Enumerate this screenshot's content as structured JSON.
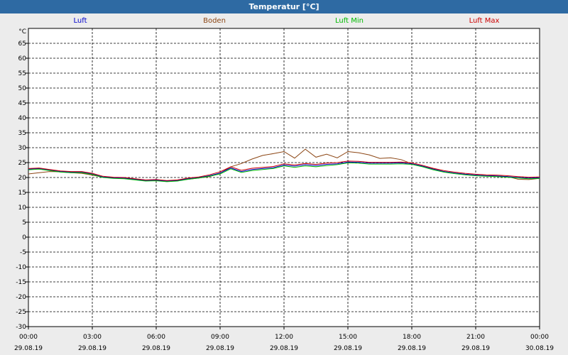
{
  "window_title": "Temperatur [°C]",
  "chart_data": {
    "type": "line",
    "title": "Temperatur [°C]",
    "ylabel": "°C",
    "ylim": [
      -30,
      70
    ],
    "yticks": [
      -30,
      -25,
      -20,
      -15,
      -10,
      -5,
      0,
      5,
      10,
      15,
      20,
      25,
      30,
      35,
      40,
      45,
      50,
      55,
      60,
      65
    ],
    "xlim": [
      "29.08.19 00:00",
      "30.08.19 00:00"
    ],
    "xticks": [
      {
        "time": "00:00",
        "date": "29.08.19"
      },
      {
        "time": "03:00",
        "date": "29.08.19"
      },
      {
        "time": "06:00",
        "date": "29.08.19"
      },
      {
        "time": "09:00",
        "date": "29.08.19"
      },
      {
        "time": "12:00",
        "date": "29.08.19"
      },
      {
        "time": "15:00",
        "date": "29.08.19"
      },
      {
        "time": "18:00",
        "date": "29.08.19"
      },
      {
        "time": "21:00",
        "date": "29.08.19"
      },
      {
        "time": "00:00",
        "date": "30.08.19"
      }
    ],
    "grid": true,
    "legend_position": "top",
    "x_hours": [
      0,
      0.5,
      1,
      1.5,
      2,
      2.5,
      3,
      3.5,
      4,
      4.5,
      5,
      5.5,
      6,
      6.5,
      7,
      7.5,
      8,
      8.5,
      9,
      9.5,
      10,
      10.5,
      11,
      11.5,
      12,
      12.5,
      13,
      13.5,
      14,
      14.5,
      15,
      15.5,
      16,
      16.5,
      17,
      17.5,
      18,
      18.5,
      19,
      19.5,
      20,
      20.5,
      21,
      21.5,
      22,
      22.5,
      23,
      23.5,
      24
    ],
    "series": [
      {
        "name": "Luft",
        "color": "#0000cc",
        "values": [
          22.8,
          23.0,
          22.5,
          22.0,
          21.8,
          21.8,
          21.2,
          20.2,
          19.9,
          19.8,
          19.4,
          19.0,
          19.1,
          18.8,
          19.0,
          19.6,
          20.0,
          20.6,
          21.5,
          23.2,
          22.0,
          22.7,
          23.0,
          23.3,
          24.2,
          23.8,
          24.3,
          24.0,
          24.4,
          24.6,
          25.2,
          25.1,
          24.8,
          24.8,
          24.8,
          24.9,
          24.6,
          23.8,
          22.8,
          22.0,
          21.5,
          21.1,
          20.8,
          20.6,
          20.5,
          20.3,
          20.0,
          19.8,
          19.9
        ]
      },
      {
        "name": "Boden",
        "color": "#8b4513",
        "values": [
          21.2,
          21.6,
          22.0,
          21.9,
          21.6,
          21.4,
          20.8,
          20.1,
          19.8,
          19.7,
          19.3,
          18.9,
          19.0,
          18.8,
          19.0,
          19.4,
          19.8,
          20.3,
          21.4,
          23.6,
          24.7,
          26.2,
          27.4,
          28.0,
          28.7,
          26.5,
          29.5,
          26.8,
          27.8,
          26.6,
          28.7,
          28.3,
          27.6,
          26.4,
          26.6,
          26.0,
          24.6,
          23.8,
          22.9,
          22.0,
          21.5,
          21.1,
          20.8,
          20.6,
          20.5,
          20.3,
          19.4,
          19.3,
          19.7
        ]
      },
      {
        "name": "Luft Min",
        "color": "#00bb00",
        "values": [
          22.6,
          22.8,
          22.3,
          21.8,
          21.6,
          21.6,
          21.0,
          20.0,
          19.7,
          19.6,
          19.2,
          18.8,
          18.9,
          18.6,
          18.8,
          19.4,
          19.8,
          20.4,
          21.2,
          22.9,
          21.7,
          22.3,
          22.7,
          23.0,
          23.9,
          23.4,
          23.9,
          23.6,
          24.0,
          24.3,
          24.9,
          24.8,
          24.5,
          24.5,
          24.5,
          24.6,
          24.4,
          23.6,
          22.6,
          21.8,
          21.3,
          20.9,
          20.6,
          20.4,
          20.3,
          20.1,
          19.8,
          19.6,
          19.7
        ]
      },
      {
        "name": "Luft Max",
        "color": "#cc0000",
        "values": [
          23.0,
          23.2,
          22.7,
          22.2,
          22.0,
          22.0,
          21.4,
          20.4,
          20.1,
          20.0,
          19.6,
          19.2,
          19.3,
          19.0,
          19.2,
          19.8,
          20.2,
          20.9,
          21.9,
          23.6,
          22.4,
          23.1,
          23.4,
          23.7,
          24.6,
          24.2,
          24.7,
          24.4,
          24.8,
          25.0,
          25.5,
          25.4,
          25.1,
          25.1,
          25.1,
          25.2,
          24.9,
          24.1,
          23.1,
          22.3,
          21.8,
          21.4,
          21.1,
          20.9,
          20.8,
          20.6,
          20.3,
          20.1,
          20.2
        ]
      }
    ]
  }
}
